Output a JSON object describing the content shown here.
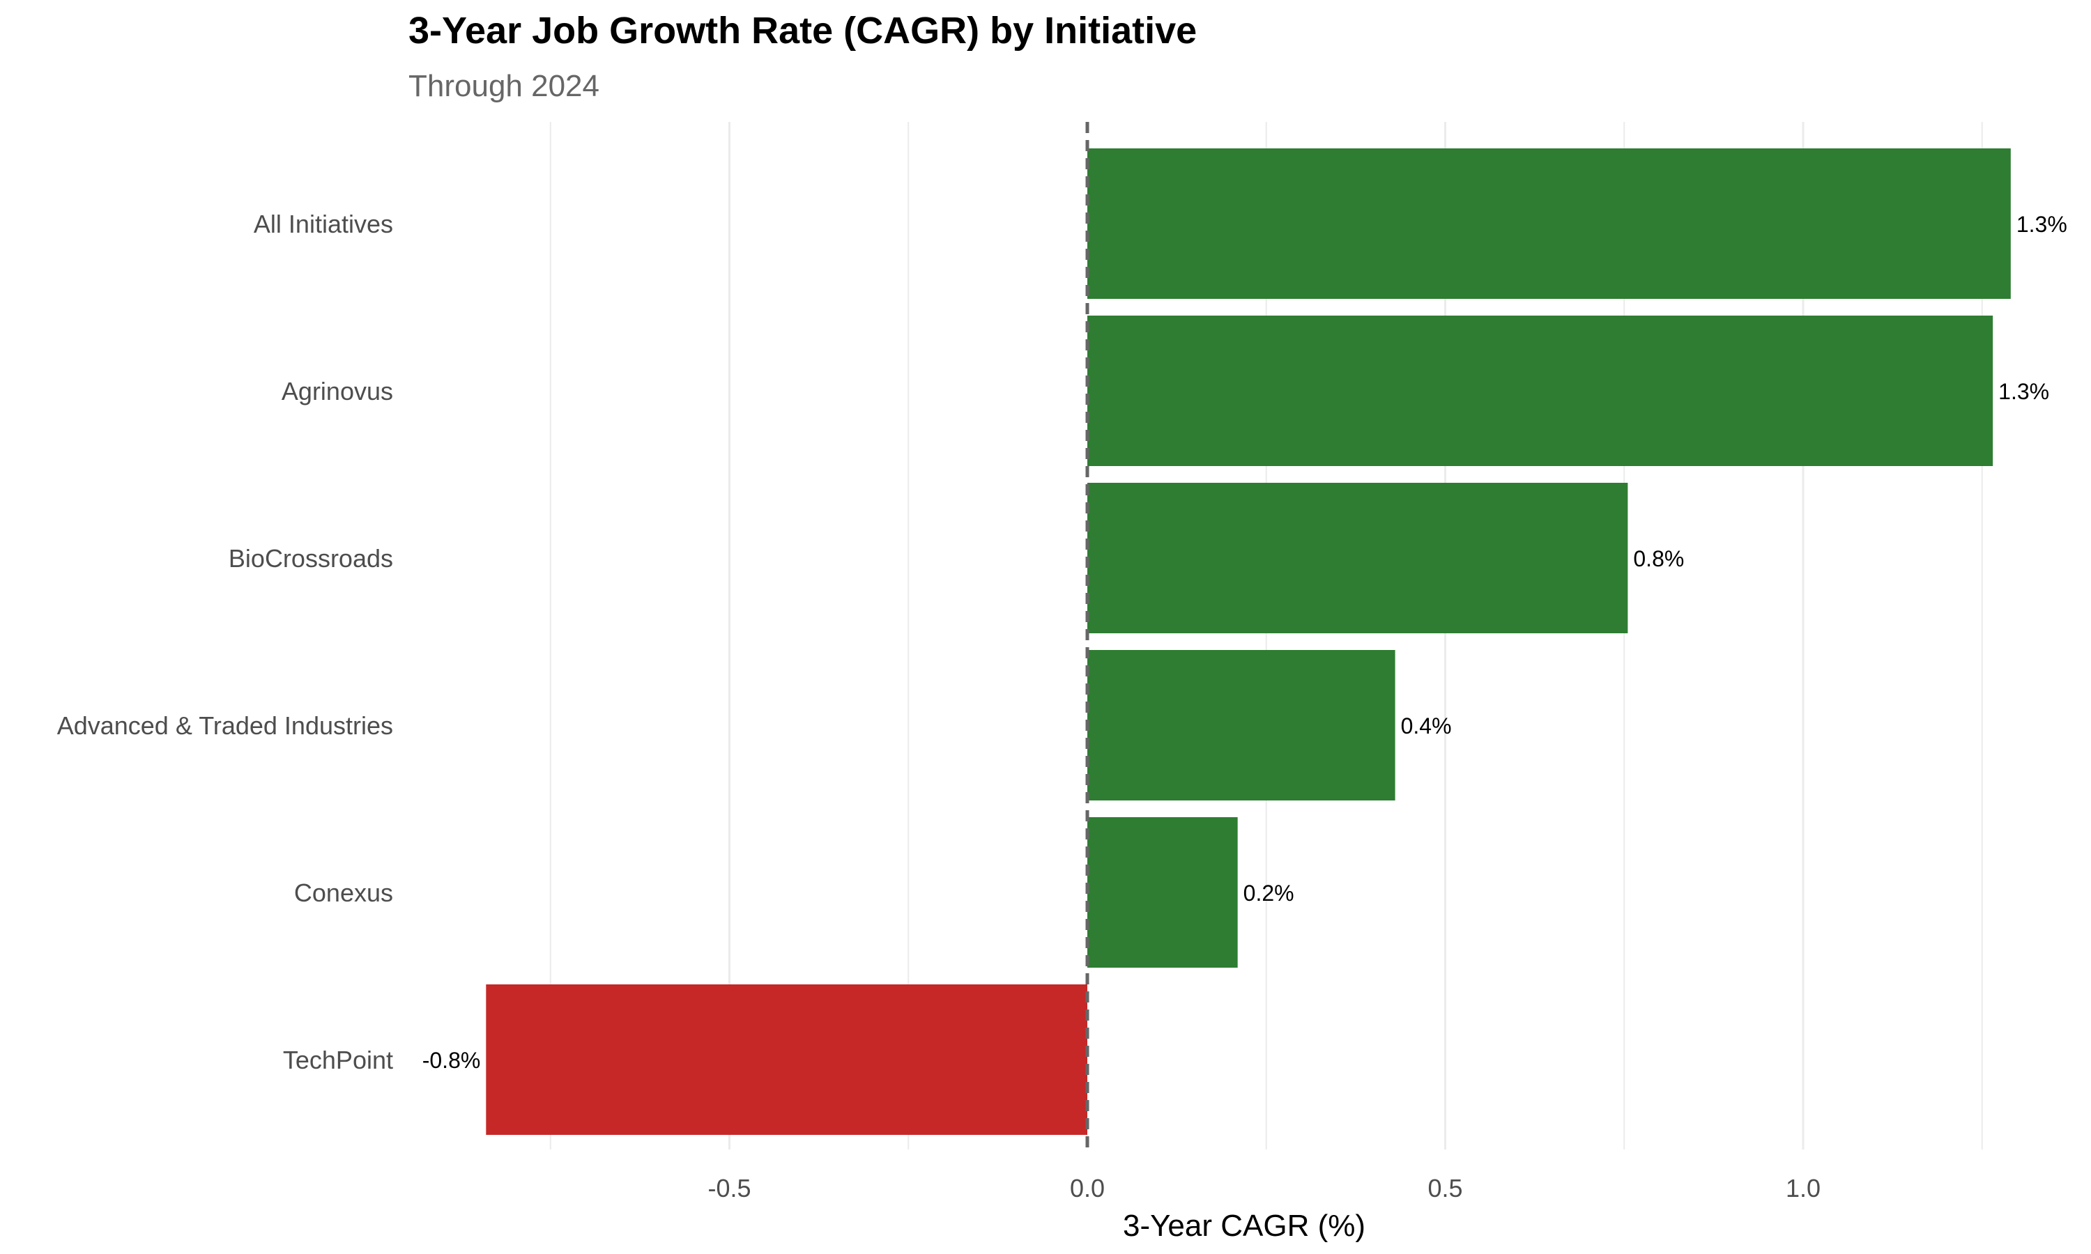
{
  "chart_data": {
    "type": "bar",
    "orientation": "horizontal",
    "title": "3-Year Job Growth Rate (CAGR) by Initiative",
    "subtitle": "Through 2024",
    "xlabel": "3-Year CAGR (%)",
    "ylabel": "",
    "xlim": [
      -0.93,
      1.33
    ],
    "xticks": [
      -0.5,
      0.0,
      0.5,
      1.0
    ],
    "xtick_labels": [
      "-0.5",
      "0.0",
      "0.5",
      "1.0"
    ],
    "minor_gridlines": [
      -0.75,
      -0.25,
      0.25,
      0.75,
      1.25
    ],
    "grid": true,
    "legend": "none",
    "reference_line": {
      "x": 0,
      "style": "dashed"
    },
    "categories": [
      "All Initiatives",
      "Agrinovus",
      "BioCrossroads",
      "Advanced & Traded Industries",
      "Conexus",
      "TechPoint"
    ],
    "values": [
      1.29,
      1.265,
      0.755,
      0.43,
      0.21,
      -0.84
    ],
    "value_labels": [
      "1.3%",
      "1.3%",
      "0.8%",
      "0.4%",
      "0.2%",
      "-0.8%"
    ],
    "colors": {
      "positive": "#2e7d32",
      "negative": "#c62828",
      "grid": "#ebebeb",
      "zero_line": "#666666"
    }
  }
}
